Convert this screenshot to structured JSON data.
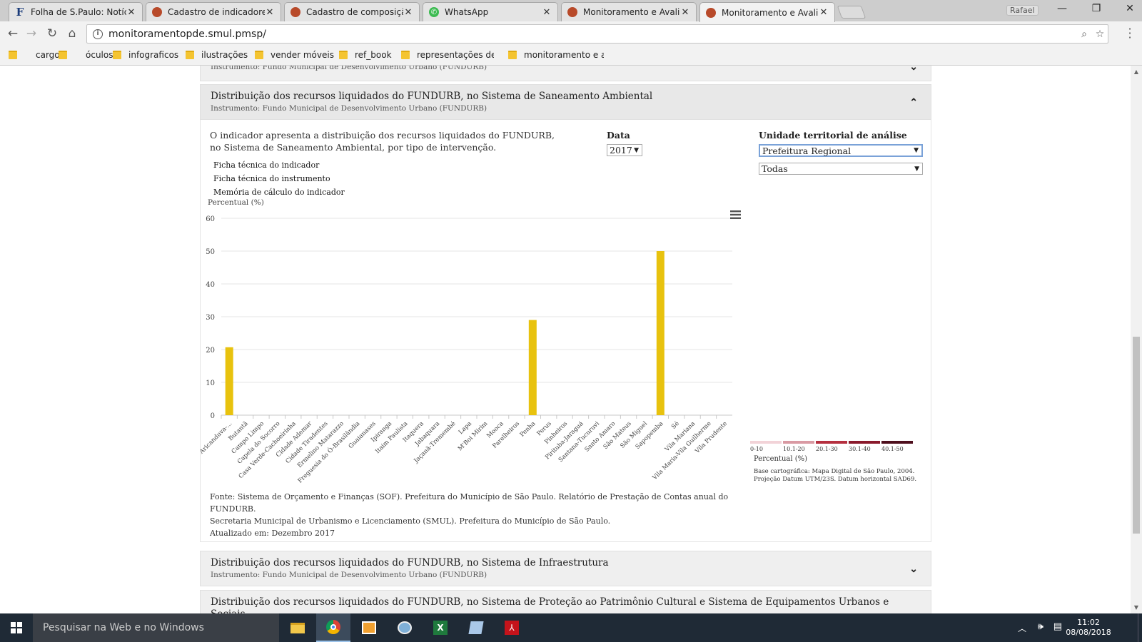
{
  "browser": {
    "tabs": [
      {
        "label": "Folha de S.Paulo: Notícias",
        "favicon": "folha-icon"
      },
      {
        "label": "Cadastro de indicadores",
        "favicon": "pmsp-icon"
      },
      {
        "label": "Cadastro de composição",
        "favicon": "pmsp-icon"
      },
      {
        "label": "WhatsApp",
        "favicon": "whatsapp-icon"
      },
      {
        "label": "Monitoramento e Avaliaç",
        "favicon": "pmsp-icon"
      },
      {
        "label": "Monitoramento e Avaliaç",
        "favicon": "pmsp-icon",
        "active": true
      }
    ],
    "user": "Rafael",
    "url": "monitoramentopde.smul.pmsp/",
    "bookmarks": [
      "cargo",
      "óculos",
      "infograficos",
      "ilustrações",
      "vender móveis",
      "ref_book",
      "representações de a",
      "monitoramento e av"
    ]
  },
  "page": {
    "prev_panel": {
      "subtitle": "Instrumento: Fundo Municipal de Desenvolvimento Urbano (FUNDURB)"
    },
    "current_panel": {
      "title": "Distribuição dos recursos liquidados do FUNDURB, no Sistema de Saneamento Ambiental",
      "subtitle": "Instrumento: Fundo Municipal de Desenvolvimento Urbano (FUNDURB)",
      "description": "O indicador apresenta a distribuição dos recursos liquidados do FUNDURB, no Sistema de Saneamento Ambiental, por tipo de intervenção.",
      "links": [
        "Ficha técnica do indicador",
        "Ficha técnica do instrumento",
        "Memória de cálculo do indicador"
      ],
      "data_label": "Data",
      "data_value": "2017",
      "unit_label": "Unidade territorial de análise",
      "unit_value": "Prefeitura Regional",
      "unit_filter": "Todas",
      "legend": {
        "title": "Percentual (%)",
        "items": [
          {
            "label": "0-10",
            "color": "#f2d3d8"
          },
          {
            "label": "10.1-20",
            "color": "#d99aa3"
          },
          {
            "label": "20.1-30",
            "color": "#b5303f"
          },
          {
            "label": "30.1-40",
            "color": "#8a1a2c"
          },
          {
            "label": "40.1-50",
            "color": "#4e0f1d"
          }
        ]
      },
      "map_note": "Base cartográfica: Mapa Digital de São Paulo, 2004. Projeção Datum UTM/23S. Datum horizontal SAD69.",
      "source_1": "Fonte: Sistema de Orçamento e Finanças (SOF). Prefeitura do Município de São Paulo. Relatório de Prestação de Contas anual do FUNDURB.",
      "source_2": "Secretaria Municipal de Urbanismo e Licenciamento (SMUL). Prefeitura do Município de São Paulo.",
      "updated": "Atualizado em: Dezembro 2017"
    },
    "next_panel": {
      "title": "Distribuição dos recursos liquidados do FUNDURB, no Sistema de Infraestrutura",
      "subtitle": "Instrumento: Fundo Municipal de Desenvolvimento Urbano (FUNDURB)"
    },
    "next_panel_2": {
      "title": "Distribuição dos recursos liquidados do FUNDURB, no Sistema de Proteção ao Patrimônio Cultural e Sistema de Equipamentos Urbanos e Sociais"
    }
  },
  "chart_data": {
    "type": "bar",
    "ylabel": "Percentual (%)",
    "ylim": [
      0,
      60
    ],
    "yticks": [
      0,
      10,
      20,
      30,
      40,
      50,
      60
    ],
    "bar_color": "#e8c20e",
    "categories": [
      "Aricanduva-...",
      "Butantã",
      "Campo Limpo",
      "Capela do Socorro",
      "Casa Verde-Cachoeirinha",
      "Cidade Ademar",
      "Cidade Tiradentes",
      "Ermelino Matarazzo",
      "Freguesia do Ó-Brasilândia",
      "Guaianases",
      "Ipiranga",
      "Itaim Paulista",
      "Itaquera",
      "Jabaquara",
      "Jaçanã-Tremembé",
      "Lapa",
      "M'Boi Mirim",
      "Mooca",
      "Parelheiros",
      "Penha",
      "Perus",
      "Pinheiros",
      "Pirituba-Jaraguá",
      "Santana-Tucuruvi",
      "Santo Amaro",
      "São Mateus",
      "São Miguel",
      "Sapopemba",
      "Sé",
      "Vila Mariana",
      "Vila Maria-Vila Guilherme",
      "Vila Prudente"
    ],
    "values": [
      20.7,
      0,
      0,
      0,
      0,
      0,
      0,
      0,
      0,
      0,
      0,
      0,
      0,
      0,
      0,
      0,
      0,
      0,
      0,
      29,
      0,
      0,
      0,
      0,
      0,
      0,
      0,
      50,
      0,
      0,
      0,
      0
    ],
    "grid": true,
    "legend": "none"
  },
  "taskbar": {
    "search_placeholder": "Pesquisar na Web e no Windows",
    "time": "11:02",
    "date": "08/08/2018"
  }
}
